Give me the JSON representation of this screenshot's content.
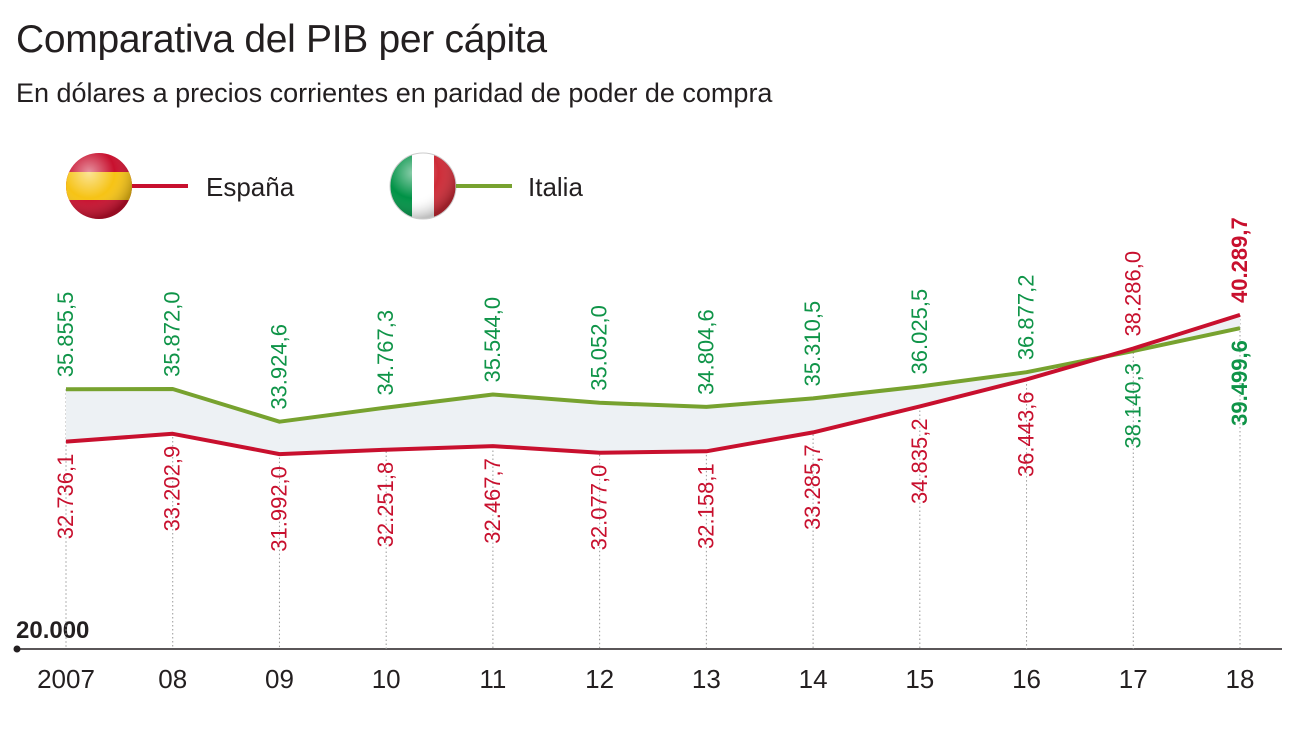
{
  "title": "Comparativa del PIB per cápita",
  "subtitle": "En dólares a precios corrientes en paridad de poder de compra",
  "colors": {
    "espana": "#c8102e",
    "italia": "#77a22f",
    "value_green": "#0f9448",
    "gap_fill": "#edf1f4",
    "axis": "#231f20"
  },
  "legend": [
    {
      "name": "España",
      "icon": "spain-flag-icon"
    },
    {
      "name": "Italia",
      "icon": "italy-flag-icon"
    }
  ],
  "chart_data": {
    "type": "line",
    "x": [
      "2007",
      "08",
      "09",
      "10",
      "11",
      "12",
      "13",
      "14",
      "15",
      "16",
      "17",
      "18"
    ],
    "baseline_label": "20.000",
    "series": [
      {
        "name": "España",
        "values": [
          32736.1,
          33202.9,
          31992.0,
          32251.8,
          32467.7,
          32077.0,
          32158.1,
          33285.7,
          34835.2,
          36443.6,
          38286.0,
          40289.7
        ],
        "labels": [
          "32.736,1",
          "33.202,9",
          "31.992,0",
          "32.251,8",
          "32.467,7",
          "32.077,0",
          "32.158,1",
          "33.285,7",
          "34.835,2",
          "36.443,6",
          "38.286,0",
          "40.289,7"
        ]
      },
      {
        "name": "Italia",
        "values": [
          35855.5,
          35872.0,
          33924.6,
          34767.3,
          35544.0,
          35052.0,
          34804.6,
          35310.5,
          36025.5,
          36877.2,
          38140.3,
          39499.6
        ],
        "labels": [
          "35.855,5",
          "35.872,0",
          "33.924,6",
          "34.767,3",
          "35.544,0",
          "35.052,0",
          "34.804,6",
          "35.310,5",
          "36.025,5",
          "36.877,2",
          "38.140,3",
          "39.499,6"
        ]
      }
    ],
    "grid": false,
    "legend_position": "top-left"
  }
}
